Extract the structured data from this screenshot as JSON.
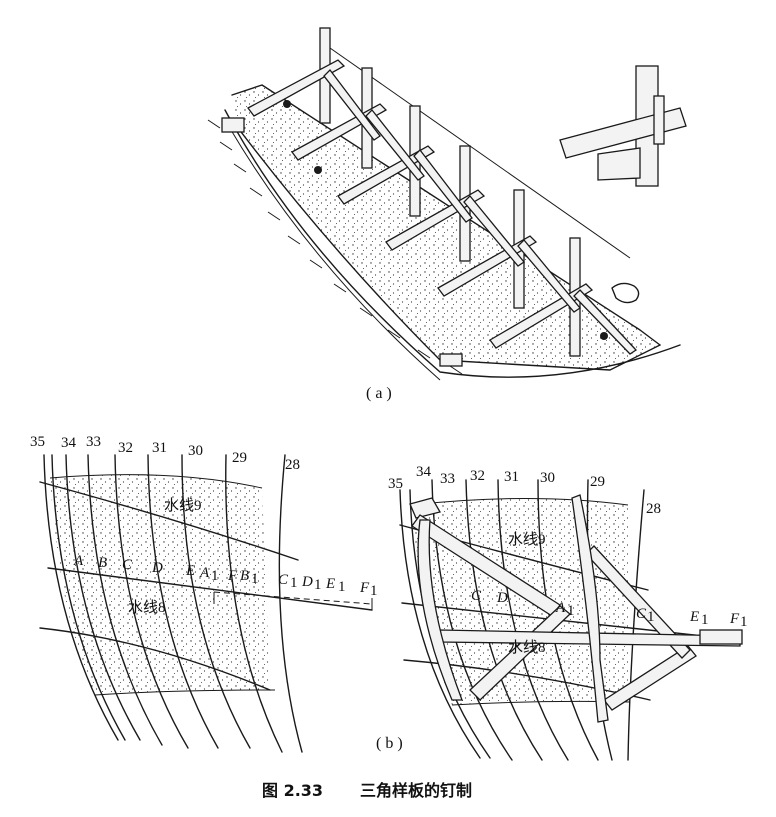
{
  "figure": {
    "caption_number": "图 2.33",
    "caption_text": "三角样板的钉制",
    "panel_a_label": "( a )",
    "panel_b_label": "( b )"
  },
  "left_diagram": {
    "frames": [
      "35",
      "34",
      "33",
      "32",
      "31",
      "30",
      "29",
      "28"
    ],
    "waterlines": [
      "水线9",
      "水线8"
    ],
    "points": [
      "A",
      "B",
      "C",
      "D",
      "E",
      "A",
      "F",
      "B",
      "C",
      "D",
      "E",
      "F"
    ],
    "subscript": "1"
  },
  "right_diagram": {
    "frames": [
      "35",
      "34",
      "33",
      "32",
      "31",
      "30",
      "29",
      "28"
    ],
    "waterlines": [
      "水线9",
      "水线8"
    ],
    "points": [
      "C",
      "D",
      "A",
      "C",
      "E",
      "F"
    ],
    "subscript": "1"
  }
}
